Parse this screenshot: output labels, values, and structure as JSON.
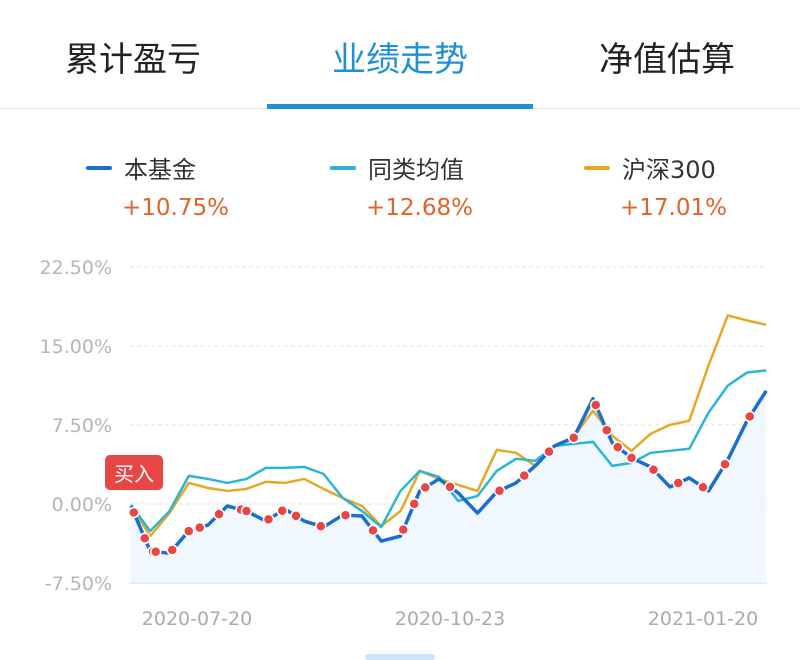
{
  "tabs": [
    {
      "label": "累计盈亏",
      "active": false
    },
    {
      "label": "业绩走势",
      "active": true
    },
    {
      "label": "净值估算",
      "active": false
    }
  ],
  "colors": {
    "accent": "#1f8fd6",
    "fund": "#1a6fce",
    "peer": "#2ab5d6",
    "index": "#e6a824",
    "return_text": "#e0622a",
    "buy_marker": "#e84545"
  },
  "legend": [
    {
      "name": "本基金",
      "value": "+10.75%"
    },
    {
      "name": "同类均值",
      "value": "+12.68%"
    },
    {
      "name": "沪深300",
      "value": "+17.01%"
    }
  ],
  "buy_badge": "买入",
  "chart_data": {
    "type": "line",
    "ylim": [
      -7.5,
      22.5
    ],
    "y_ticks": [
      "22.50%",
      "15.00%",
      "7.50%",
      "0.00%",
      "-7.50%"
    ],
    "y_tick_values": [
      22.5,
      15,
      7.5,
      0,
      -7.5
    ],
    "x_ticks": [
      "2020-07-20",
      "2020-10-23",
      "2021-01-20"
    ],
    "grid": true,
    "legend_position": "top",
    "x": [
      "2020-06-26",
      "2020-07-03",
      "2020-07-10",
      "2020-07-17",
      "2020-07-24",
      "2020-07-31",
      "2020-08-07",
      "2020-08-14",
      "2020-08-21",
      "2020-08-28",
      "2020-09-04",
      "2020-09-11",
      "2020-09-18",
      "2020-09-25",
      "2020-10-02",
      "2020-10-09",
      "2020-10-16",
      "2020-10-23",
      "2020-10-30",
      "2020-11-06",
      "2020-11-13",
      "2020-11-20",
      "2020-11-27",
      "2020-12-04",
      "2020-12-11",
      "2020-12-18",
      "2020-12-25",
      "2021-01-01",
      "2021-01-08",
      "2021-01-15",
      "2021-01-22",
      "2021-01-29",
      "2021-02-05",
      "2021-02-12"
    ],
    "series": [
      {
        "name": "本基金",
        "values": [
          -0.19,
          -4.48,
          -4.67,
          -2.57,
          -2.0,
          -0.19,
          -0.67,
          -1.62,
          -0.48,
          -1.62,
          -2.19,
          -1.05,
          -1.14,
          -3.52,
          -3.05,
          1.24,
          2.38,
          1.05,
          -0.86,
          1.14,
          2.0,
          3.62,
          5.52,
          6.29,
          10.0,
          5.81,
          4.38,
          3.52,
          1.62,
          2.48,
          1.24,
          4.19,
          7.9,
          10.75
        ]
      },
      {
        "name": "同类均值",
        "values": [
          -0.1,
          -2.57,
          -0.67,
          2.67,
          2.38,
          2.0,
          2.38,
          3.43,
          3.43,
          3.52,
          2.86,
          0.57,
          -0.67,
          -2.19,
          1.24,
          3.14,
          2.57,
          0.29,
          0.76,
          3.14,
          4.29,
          4.1,
          5.52,
          5.71,
          5.9,
          3.62,
          3.9,
          4.86,
          5.05,
          5.24,
          8.67,
          11.24,
          12.48,
          12.68
        ]
      },
      {
        "name": "沪深300",
        "values": [
          -0.19,
          -3.05,
          -0.86,
          2.0,
          1.52,
          1.24,
          1.43,
          2.1,
          2.0,
          2.38,
          1.43,
          0.57,
          -0.19,
          -2.1,
          -0.67,
          3.14,
          2.38,
          1.81,
          1.24,
          5.14,
          4.86,
          3.62,
          5.52,
          6.38,
          8.86,
          6.48,
          5.05,
          6.67,
          7.52,
          7.9,
          13.14,
          17.9,
          17.43,
          17.01
        ]
      }
    ],
    "buy_points": [
      "2020-06-27",
      "2020-07-01",
      "2020-07-04",
      "2020-07-05",
      "2020-07-11",
      "2020-07-17",
      "2020-07-21",
      "2020-07-28",
      "2020-08-05",
      "2020-08-07",
      "2020-08-15",
      "2020-08-20",
      "2020-08-25",
      "2020-09-03",
      "2020-09-12",
      "2020-09-22",
      "2020-10-03",
      "2020-10-07",
      "2020-10-11",
      "2020-10-20",
      "2020-11-07",
      "2020-11-16",
      "2020-11-25",
      "2020-12-04",
      "2020-12-12",
      "2020-12-16",
      "2020-12-20",
      "2020-12-25",
      "2021-01-02",
      "2021-01-11",
      "2021-01-20",
      "2021-01-28",
      "2021-02-06"
    ]
  }
}
